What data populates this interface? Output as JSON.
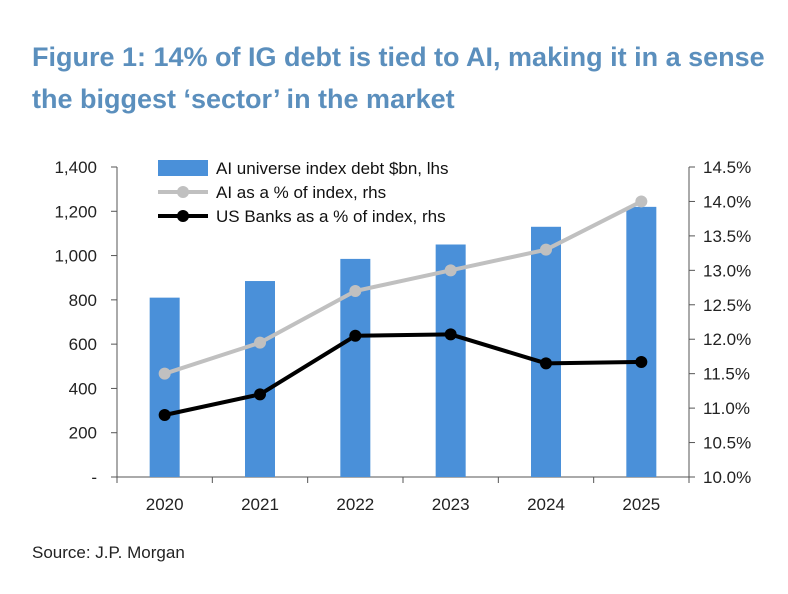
{
  "title": "Figure 1: 14% of IG debt is tied to AI, making it in a sense the biggest ‘sector’ in the market",
  "source": "Source: J.P. Morgan",
  "colors": {
    "title": "#5b8fbd",
    "bar": "#4a90d9",
    "ai_line": "#c0c0c0",
    "banks_line": "#000000",
    "axis": "#555555"
  },
  "chart_data": {
    "type": "bar",
    "categories": [
      "2020",
      "2021",
      "2022",
      "2023",
      "2024",
      "2025"
    ],
    "series": [
      {
        "name": "AI universe index debt $bn, lhs",
        "kind": "bar",
        "axis": "left",
        "values": [
          810,
          885,
          985,
          1050,
          1130,
          1220
        ]
      },
      {
        "name": "AI as a % of index, rhs",
        "kind": "line",
        "axis": "right",
        "values": [
          11.5,
          11.95,
          12.7,
          13.0,
          13.3,
          14.0
        ]
      },
      {
        "name": "US Banks as a % of index, rhs",
        "kind": "line",
        "axis": "right",
        "values": [
          10.9,
          11.2,
          12.05,
          12.07,
          11.65,
          11.67
        ]
      }
    ],
    "left_axis": {
      "min": 0,
      "max": 1400,
      "ticks": [
        0,
        200,
        400,
        600,
        800,
        1000,
        1200,
        1400
      ],
      "tick_labels": [
        "-",
        "200",
        "400",
        "600",
        "800",
        "1,000",
        "1,200",
        "1,400"
      ]
    },
    "right_axis": {
      "min": 10.0,
      "max": 14.5,
      "ticks": [
        10.0,
        10.5,
        11.0,
        11.5,
        12.0,
        12.5,
        13.0,
        13.5,
        14.0,
        14.5
      ],
      "tick_labels": [
        "10.0%",
        "10.5%",
        "11.0%",
        "11.5%",
        "12.0%",
        "12.5%",
        "13.0%",
        "13.5%",
        "14.0%",
        "14.5%"
      ]
    },
    "legend_position": "top-left",
    "grid": false
  }
}
